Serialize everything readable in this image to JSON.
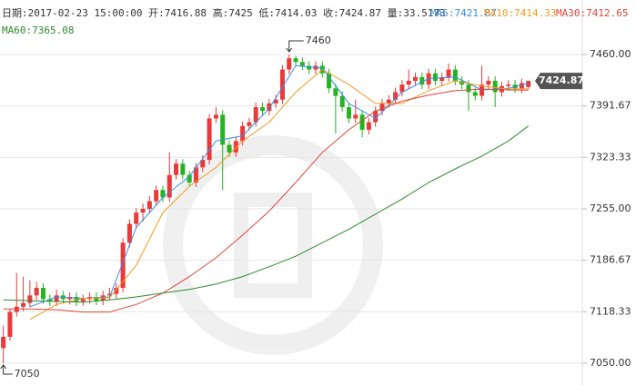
{
  "chart_data": {
    "type": "candlestick",
    "header": {
      "info": "日期:2017-02-23 15:00:00 开:7416.88 高:7425 低:7414.03 收:7424.87 量:33.5173"
    },
    "open": [
      7070,
      7085,
      7118,
      7125,
      7130,
      7140,
      7150,
      7135,
      7132,
      7140,
      7135,
      7138,
      7132,
      7135,
      7138,
      7133,
      7140,
      7142,
      7150,
      7210,
      7235,
      7250,
      7255,
      7265,
      7280,
      7270,
      7300,
      7315,
      7300,
      7290,
      7310,
      7320,
      7375,
      7380,
      7340,
      7330,
      7345,
      7365,
      7370,
      7390,
      7385,
      7395,
      7400,
      7440,
      7455,
      7450,
      7445,
      7440,
      7445,
      7435,
      7415,
      7405,
      7390,
      7375,
      7380,
      7360,
      7370,
      7385,
      7395,
      7400,
      7410,
      7420,
      7425,
      7430,
      7420,
      7435,
      7425,
      7430,
      7440,
      7425,
      7420,
      7410,
      7405,
      7420,
      7425,
      7410,
      7418,
      7420,
      7415,
      7416.88
    ],
    "high": [
      7100,
      7122,
      7170,
      7165,
      7160,
      7158,
      7156,
      7141,
      7148,
      7146,
      7144,
      7144,
      7141,
      7144,
      7144,
      7146,
      7150,
      7156,
      7216,
      7241,
      7256,
      7262,
      7272,
      7286,
      7286,
      7330,
      7321,
      7321,
      7306,
      7316,
      7326,
      7381,
      7390,
      7386,
      7346,
      7351,
      7371,
      7376,
      7396,
      7396,
      7401,
      7406,
      7446,
      7460,
      7458,
      7456,
      7451,
      7451,
      7451,
      7441,
      7421,
      7411,
      7396,
      7400,
      7386,
      7376,
      7391,
      7401,
      7406,
      7416,
      7426,
      7440,
      7436,
      7436,
      7441,
      7441,
      7436,
      7448,
      7446,
      7431,
      7426,
      7416,
      7445,
      7431,
      7431,
      7424,
      7426,
      7426,
      7428,
      7425
    ],
    "low": [
      7050,
      7080,
      7112,
      7119,
      7124,
      7134,
      7129,
      7126,
      7126,
      7129,
      7128,
      7126,
      7126,
      7129,
      7127,
      7127,
      7134,
      7136,
      7144,
      7204,
      7229,
      7238,
      7249,
      7259,
      7264,
      7264,
      7294,
      7294,
      7284,
      7284,
      7304,
      7314,
      7369,
      7280,
      7324,
      7324,
      7339,
      7359,
      7364,
      7379,
      7379,
      7389,
      7394,
      7434,
      7444,
      7439,
      7434,
      7434,
      7429,
      7409,
      7355,
      7384,
      7369,
      7369,
      7350,
      7354,
      7364,
      7379,
      7389,
      7394,
      7404,
      7414,
      7419,
      7414,
      7414,
      7419,
      7419,
      7424,
      7419,
      7414,
      7385,
      7399,
      7399,
      7414,
      7390,
      7404,
      7412,
      7409,
      7409,
      7414.03
    ],
    "close": [
      7085,
      7118,
      7125,
      7130,
      7140,
      7150,
      7135,
      7132,
      7140,
      7135,
      7138,
      7132,
      7135,
      7138,
      7133,
      7140,
      7142,
      7150,
      7210,
      7235,
      7250,
      7255,
      7265,
      7280,
      7270,
      7300,
      7315,
      7300,
      7290,
      7310,
      7320,
      7375,
      7380,
      7340,
      7330,
      7345,
      7365,
      7370,
      7390,
      7385,
      7395,
      7400,
      7440,
      7455,
      7450,
      7445,
      7440,
      7445,
      7435,
      7415,
      7405,
      7390,
      7375,
      7380,
      7360,
      7370,
      7385,
      7395,
      7400,
      7410,
      7420,
      7425,
      7430,
      7420,
      7435,
      7425,
      7430,
      7440,
      7425,
      7420,
      7410,
      7405,
      7420,
      7425,
      7410,
      7418,
      7420,
      7415,
      7422,
      7424.87
    ],
    "up_color": "#e8393b",
    "down_color": "#23b51f",
    "series": [
      {
        "name": "MA5:7421.87",
        "color": "#3a8ee6",
        "x": [
          4,
          8,
          12,
          16,
          20,
          24,
          28,
          32,
          36,
          40,
          44,
          48,
          52,
          56,
          60,
          64,
          68,
          72,
          76,
          79
        ],
        "values": [
          7125,
          7138,
          7136,
          7138,
          7230,
          7270,
          7298,
          7345,
          7352,
          7388,
          7445,
          7442,
          7395,
          7375,
          7410,
          7428,
          7430,
          7413,
          7415,
          7421.87
        ]
      },
      {
        "name": "MA10:7414.33",
        "color": "#f29b20",
        "x": [
          4,
          8,
          12,
          16,
          20,
          24,
          28,
          32,
          36,
          40,
          44,
          48,
          52,
          56,
          60,
          64,
          68,
          72,
          76,
          79
        ],
        "values": [
          7108,
          7128,
          7136,
          7137,
          7180,
          7250,
          7285,
          7310,
          7345,
          7370,
          7410,
          7440,
          7420,
          7395,
          7395,
          7412,
          7425,
          7418,
          7414,
          7414.33
        ]
      },
      {
        "name": "MA30:7412.65",
        "color": "#e0453a",
        "x": [
          0,
          4,
          8,
          12,
          16,
          20,
          24,
          28,
          32,
          36,
          40,
          44,
          48,
          52,
          56,
          60,
          64,
          68,
          72,
          76,
          79
        ],
        "values": [
          7122,
          7122,
          7121,
          7118,
          7118,
          7128,
          7143,
          7165,
          7190,
          7220,
          7252,
          7290,
          7330,
          7360,
          7385,
          7398,
          7406,
          7412,
          7414,
          7413,
          7412.65
        ]
      },
      {
        "name": "MA60:7365.08",
        "color": "#2e8b2e",
        "x": [
          0,
          4,
          8,
          12,
          16,
          20,
          24,
          28,
          32,
          36,
          40,
          44,
          48,
          52,
          56,
          60,
          64,
          68,
          72,
          76,
          79
        ],
        "values": [
          7134,
          7133,
          7132,
          7131,
          7134,
          7138,
          7143,
          7148,
          7155,
          7165,
          7178,
          7192,
          7210,
          7228,
          7248,
          7268,
          7290,
          7308,
          7325,
          7345,
          7365.08
        ]
      }
    ],
    "xlim": [
      -0.5,
      80
    ],
    "ylim": [
      7021,
      7501
    ],
    "yticks": [
      {
        "value": 7460,
        "label": "7460.00"
      },
      7391.67,
      7323.33,
      {
        "value": 7255,
        "label": "7255.00"
      },
      7186.67,
      7118.33,
      {
        "value": 7050,
        "label": "7050.00"
      }
    ],
    "grid": true,
    "annotations": {
      "high": 7460,
      "low": 7050
    }
  }
}
